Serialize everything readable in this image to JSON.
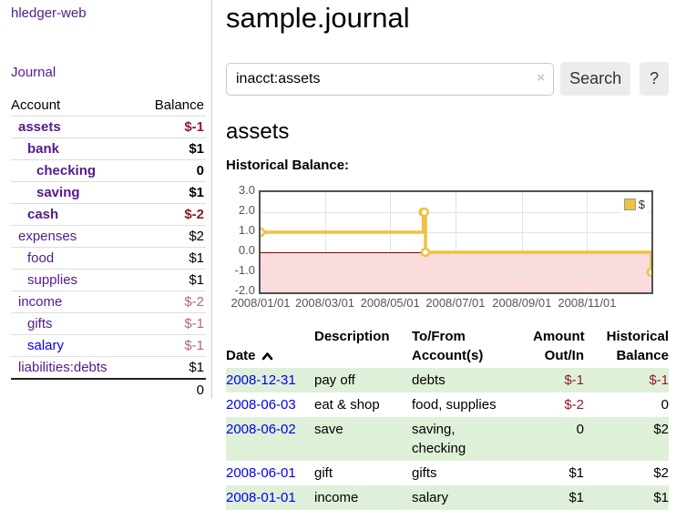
{
  "colors": {
    "link_purple": "#551a8b",
    "link_blue": "#0000ee",
    "negative_strong": "#8d1d25",
    "negative_soft": "#b06a70",
    "row_green": "#dff0d8",
    "chart_line": "#edc240",
    "chart_negative_fill": "#fbdcdc",
    "chart_zero_line": "#8b0000",
    "grid": "#e3e3e3",
    "plot_border": "#515151",
    "button_bg": "#ececec"
  },
  "sidebar": {
    "brand": "hledger-web",
    "nav_journal": "Journal",
    "accounts": {
      "headers": [
        "Account",
        "Balance"
      ],
      "rows": [
        {
          "name": "assets",
          "level": 1,
          "bold": true,
          "balance": "$-1"
        },
        {
          "name": "bank",
          "level": 2,
          "bold": true,
          "balance": "$1"
        },
        {
          "name": "checking",
          "level": 3,
          "bold": true,
          "balance": "0"
        },
        {
          "name": "saving",
          "level": 3,
          "bold": true,
          "balance": "$1"
        },
        {
          "name": "cash",
          "level": 2,
          "bold": true,
          "balance": "$-2"
        },
        {
          "name": "expenses",
          "level": 1,
          "bold": false,
          "balance": "$2"
        },
        {
          "name": "food",
          "level": 2,
          "bold": false,
          "balance": "$1"
        },
        {
          "name": "supplies",
          "level": 2,
          "bold": false,
          "balance": "$1"
        },
        {
          "name": "income",
          "level": 1,
          "bold": false,
          "balance": "$-2"
        },
        {
          "name": "gifts",
          "level": 2,
          "bold": false,
          "balance": "$-1"
        },
        {
          "name": "salary",
          "level": 2,
          "bold": false,
          "balance": "$-1",
          "link_style": "blue"
        },
        {
          "name": "liabilities:debts",
          "level": 1,
          "bold": false,
          "balance": "$1"
        }
      ],
      "total": "0"
    }
  },
  "main": {
    "title": "sample.journal",
    "search": {
      "value": "inacct:assets",
      "clear_icon": "×",
      "button_label": "Search",
      "help_label": "?"
    },
    "account_heading": "assets",
    "chart_label": "Historical Balance:",
    "register": {
      "headers": [
        "Date",
        "Description",
        "To/From\nAccount(s)",
        "Amount\nOut/In",
        "Historical\nBalance"
      ],
      "sort_column": "Date",
      "sort_direction": "asc",
      "rows": [
        {
          "date": "2008-12-31",
          "description": "pay off",
          "accounts": "debts",
          "amount": "$-1",
          "balance": "$-1"
        },
        {
          "date": "2008-06-03",
          "description": "eat & shop",
          "accounts": "food, supplies",
          "amount": "$-2",
          "balance": "0"
        },
        {
          "date": "2008-06-02",
          "description": "save",
          "accounts": "saving,\nchecking",
          "amount": "0",
          "balance": "$2"
        },
        {
          "date": "2008-06-01",
          "description": "gift",
          "accounts": "gifts",
          "amount": "$1",
          "balance": "$2"
        },
        {
          "date": "2008-01-01",
          "description": "income",
          "accounts": "salary",
          "amount": "$1",
          "balance": "$1"
        }
      ]
    }
  },
  "chart_data": {
    "type": "line",
    "style": "step",
    "title": "Historical Balance:",
    "legend": [
      {
        "name": "$",
        "color": "#edc240"
      }
    ],
    "legend_position": "top-right",
    "x_range": [
      "2008-01-01",
      "2008-12-31"
    ],
    "x_ticks": [
      "2008/01/01",
      "2008/03/01",
      "2008/05/01",
      "2008/07/01",
      "2008/09/01",
      "2008/11/01"
    ],
    "y_ticks": [
      "3.0",
      "2.0",
      "1.0",
      "0.0",
      "-1.0",
      "-2.0"
    ],
    "ylim": [
      -2,
      3
    ],
    "grid": true,
    "negative_region_shaded": true,
    "series": [
      {
        "name": "$",
        "points": [
          [
            "2008-01-01",
            1
          ],
          [
            "2008-06-01",
            2
          ],
          [
            "2008-06-02",
            2
          ],
          [
            "2008-06-03",
            0
          ],
          [
            "2008-12-31",
            -1
          ]
        ]
      }
    ]
  }
}
